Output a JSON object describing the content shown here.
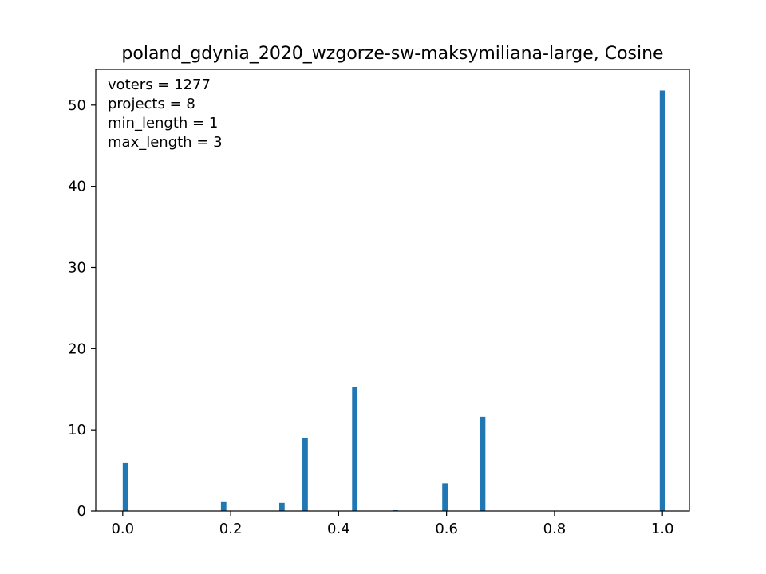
{
  "chart_data": {
    "type": "bar",
    "title": "poland_gdynia_2020_wzgorze-sw-maksymiliana-large, Cosine",
    "xlabel": "",
    "ylabel": "",
    "xlim": [
      -0.05,
      1.05
    ],
    "ylim": [
      0,
      54.4
    ],
    "x_ticks": [
      0.0,
      0.2,
      0.4,
      0.6,
      0.8,
      1.0
    ],
    "x_tick_labels": [
      "0.0",
      "0.2",
      "0.4",
      "0.6",
      "0.8",
      "1.0"
    ],
    "y_ticks": [
      0,
      10,
      20,
      30,
      40,
      50
    ],
    "y_tick_labels": [
      "0",
      "10",
      "20",
      "30",
      "40",
      "50"
    ],
    "bar_width": 0.01,
    "bars": [
      {
        "x": 0.005,
        "value": 5.9
      },
      {
        "x": 0.187,
        "value": 1.1
      },
      {
        "x": 0.295,
        "value": 1.0
      },
      {
        "x": 0.338,
        "value": 9.0
      },
      {
        "x": 0.43,
        "value": 15.3
      },
      {
        "x": 0.505,
        "value": 0.1
      },
      {
        "x": 0.597,
        "value": 3.4
      },
      {
        "x": 0.667,
        "value": 11.6
      },
      {
        "x": 1.0,
        "value": 51.8
      }
    ],
    "annotations": [
      "voters = 1277",
      "projects = 8",
      "min_length = 1",
      "max_length = 3"
    ],
    "grid": false,
    "bar_color": "#1f77b4"
  }
}
